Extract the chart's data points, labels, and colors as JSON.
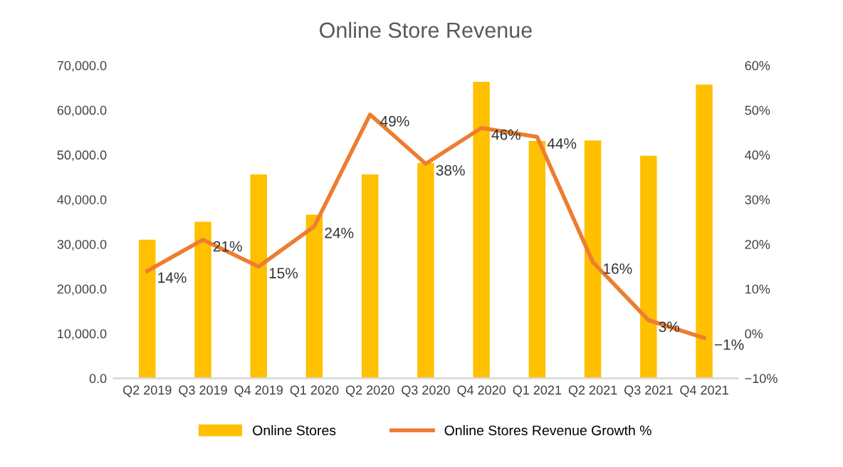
{
  "chart_data": {
    "type": "bar",
    "title": "Online Store Revenue",
    "categories": [
      "Q2 2019",
      "Q3 2019",
      "Q4 2019",
      "Q1 2020",
      "Q2 2020",
      "Q3 2020",
      "Q4 2020",
      "Q1 2021",
      "Q2 2021",
      "Q3 2021",
      "Q4 2021"
    ],
    "series": [
      {
        "name": "Online Stores",
        "color": "#ffc000",
        "values": [
          31000,
          35000,
          45600,
          36600,
          45600,
          48200,
          66300,
          53100,
          53200,
          49800,
          65700
        ]
      },
      {
        "name": "Online Stores Revenue Growth %",
        "type": "line",
        "axis": "y2",
        "color": "#ed7d31",
        "values": [
          14,
          21,
          15,
          24,
          49,
          38,
          46,
          44,
          16,
          3,
          -1
        ],
        "value_labels": [
          "14%",
          "21%",
          "15%",
          "24%",
          "49%",
          "38%",
          "46%",
          "44%",
          "16%",
          "3%",
          "−1%"
        ]
      }
    ],
    "ylim": [
      0,
      70000
    ],
    "yticks": [
      {
        "value": 0,
        "label": "0.0"
      },
      {
        "value": 10000,
        "label": "10,000.0"
      },
      {
        "value": 20000,
        "label": "20,000.0"
      },
      {
        "value": 30000,
        "label": "30,000.0"
      },
      {
        "value": 40000,
        "label": "40,000.0"
      },
      {
        "value": 50000,
        "label": "50,000.0"
      },
      {
        "value": 60000,
        "label": "60,000.0"
      },
      {
        "value": 70000,
        "label": "70,000.0"
      }
    ],
    "y2lim": [
      -10,
      60
    ],
    "y2ticks": [
      {
        "value": -10,
        "label": "−10%"
      },
      {
        "value": 0,
        "label": "0%"
      },
      {
        "value": 10,
        "label": "10%"
      },
      {
        "value": 20,
        "label": "20%"
      },
      {
        "value": 30,
        "label": "30%"
      },
      {
        "value": 40,
        "label": "40%"
      },
      {
        "value": 50,
        "label": "50%"
      },
      {
        "value": 60,
        "label": "60%"
      }
    ],
    "legend": "bottom",
    "grid": false
  }
}
